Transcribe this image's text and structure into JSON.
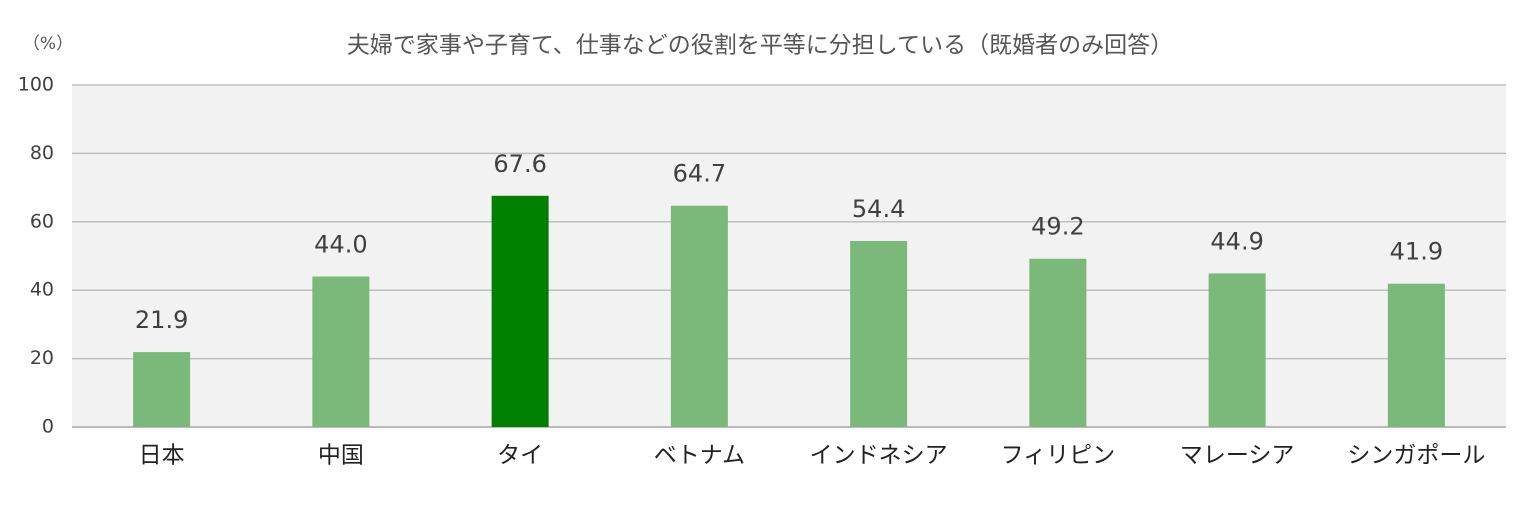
{
  "chart_data": {
    "type": "bar",
    "title": "夫婦で家事や子育て、仕事などの役割を平等に分担している（既婚者のみ回答）",
    "y_label": "（%）",
    "categories": [
      "日本",
      "中国",
      "タイ",
      "ベトナム",
      "インドネシア",
      "フィリピン",
      "マレーシア",
      "シンガポール"
    ],
    "values": [
      21.9,
      44.0,
      67.6,
      64.7,
      54.4,
      49.2,
      44.9,
      41.9
    ],
    "value_labels": [
      "21.9",
      "44.0",
      "67.6",
      "64.7",
      "54.4",
      "49.2",
      "44.9",
      "41.9"
    ],
    "colors": [
      "#7ab97a",
      "#7ab97a",
      "#008000",
      "#7ab97a",
      "#7ab97a",
      "#7ab97a",
      "#7ab97a",
      "#7ab97a"
    ],
    "ylim": [
      0,
      100
    ],
    "yticks": [
      0,
      20,
      40,
      60,
      80,
      100
    ],
    "grid": true
  }
}
